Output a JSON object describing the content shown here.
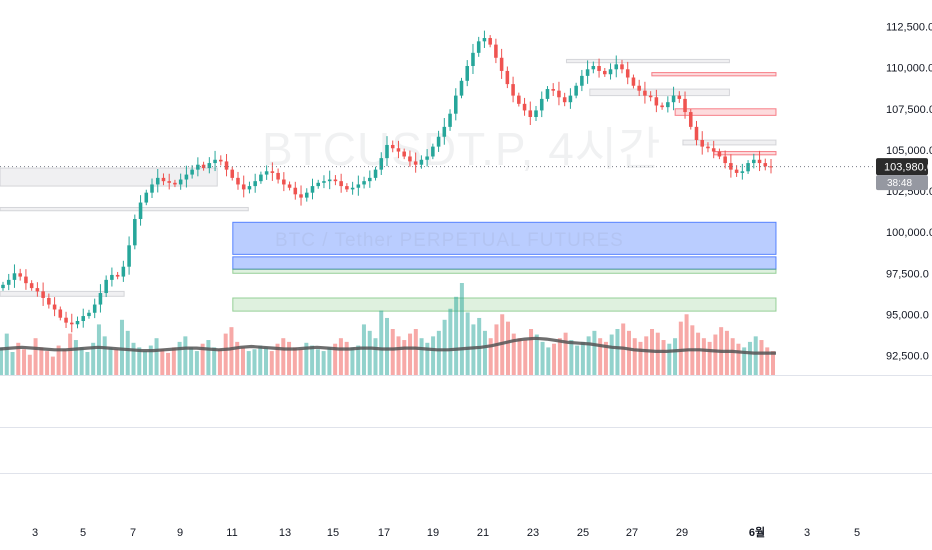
{
  "watermark": {
    "symbol": "BTCUSDT.P, 4시간",
    "description": "BTC / Tether PERPETUAL FUTURES"
  },
  "current": {
    "price": "103,980.0",
    "countdown": "38:48"
  },
  "colors": {
    "up": "#26a69a",
    "down": "#ef5350",
    "current_label": "#2b2b2b",
    "countdown_bg": "#9598a1",
    "ma_line": "#555555",
    "zone_blue": "#2962ff",
    "zone_green": "#4caf50",
    "zone_red": "#f23645",
    "zone_gray": "#9598a1"
  },
  "chart_data": {
    "type": "candlestick",
    "timeframe": "4h",
    "ylim": [
      91500,
      113200
    ],
    "y_ticks": [
      {
        "value": 112500,
        "label": "112,500.0"
      },
      {
        "value": 110000,
        "label": "110,000.0"
      },
      {
        "value": 107500,
        "label": "107,500.0"
      },
      {
        "value": 105000,
        "label": "105,000.0"
      },
      {
        "value": 102500,
        "label": "102,500.0"
      },
      {
        "value": 100000,
        "label": "100,000.0"
      },
      {
        "value": 97500,
        "label": "97,500.0"
      },
      {
        "value": 95000,
        "label": "95,000.0"
      },
      {
        "value": 92500,
        "label": "92,500.0"
      }
    ],
    "x_ticks": [
      "3",
      "5",
      "7",
      "9",
      "11",
      "13",
      "15",
      "17",
      "19",
      "21",
      "23",
      "25",
      "27",
      "29",
      "6월",
      "3",
      "5"
    ],
    "close_path": [
      96800,
      97100,
      97500,
      97300,
      96900,
      96600,
      96400,
      96000,
      95600,
      95300,
      94800,
      94500,
      94400,
      94600,
      94900,
      95100,
      95600,
      96300,
      97100,
      97400,
      97300,
      97900,
      99200,
      100800,
      101800,
      102400,
      102900,
      103300,
      103100,
      103000,
      102900,
      103200,
      103500,
      103800,
      104100,
      103900,
      104200,
      104400,
      104300,
      103800,
      103300,
      102900,
      102600,
      102800,
      103100,
      103500,
      103700,
      103600,
      103200,
      102900,
      102700,
      102300,
      102100,
      102400,
      102800,
      103000,
      103100,
      103200,
      103100,
      102800,
      102600,
      102700,
      102900,
      103100,
      103300,
      103800,
      104500,
      105300,
      105100,
      104900,
      104600,
      104300,
      104100,
      104400,
      104600,
      105200,
      105800,
      106400,
      107200,
      108300,
      109200,
      110100,
      110900,
      111600,
      111800,
      111400,
      110600,
      109800,
      109000,
      108300,
      107800,
      107400,
      107000,
      107400,
      108100,
      108700,
      108600,
      108200,
      107900,
      108300,
      108900,
      109500,
      109900,
      110100,
      109800,
      109600,
      109900,
      110200,
      109900,
      109400,
      108900,
      108600,
      108300,
      108200,
      107700,
      107600,
      107900,
      108300,
      108100,
      107300,
      106400,
      105600,
      105200,
      105100,
      104900,
      104600,
      104200,
      103800,
      103600,
      103700,
      104200,
      104400,
      104200,
      104000,
      103980
    ],
    "current_price": 103980,
    "ma_path": [
      92900,
      92950,
      93000,
      92950,
      92900,
      92850,
      92850,
      92900,
      92950,
      93000,
      92950,
      92900,
      92850,
      92800,
      92800,
      92850,
      92900,
      92950,
      92950,
      92900,
      92850,
      92900,
      93000,
      93050,
      93000,
      92950,
      92900,
      92900,
      92950,
      93000,
      92950,
      92900,
      92900,
      92950,
      92950,
      92900,
      92900,
      92950,
      92950,
      92900,
      92850,
      92850,
      92900,
      92950,
      93000,
      93100,
      93250,
      93400,
      93500,
      93550,
      93500,
      93400,
      93300,
      93250,
      93200,
      93100,
      93000,
      92950,
      92850,
      92800,
      92750,
      92750,
      92800,
      92850,
      92850,
      92800,
      92750,
      92750,
      92700,
      92650,
      92650,
      92650
    ],
    "volume_path": [
      0.3,
      0.45,
      0.25,
      0.35,
      0.28,
      0.22,
      0.4,
      0.3,
      0.26,
      0.2,
      0.32,
      0.28,
      0.45,
      0.38,
      0.3,
      0.25,
      0.35,
      0.55,
      0.42,
      0.3,
      0.28,
      0.6,
      0.48,
      0.35,
      0.3,
      0.26,
      0.32,
      0.4,
      0.28,
      0.24,
      0.3,
      0.36,
      0.42,
      0.3,
      0.26,
      0.34,
      0.38,
      0.3,
      0.28,
      0.45,
      0.52,
      0.36,
      0.3,
      0.26,
      0.28,
      0.32,
      0.3,
      0.26,
      0.34,
      0.4,
      0.36,
      0.3,
      0.28,
      0.35,
      0.32,
      0.28,
      0.26,
      0.3,
      0.34,
      0.4,
      0.36,
      0.3,
      0.32,
      0.55,
      0.48,
      0.4,
      0.7,
      0.62,
      0.5,
      0.42,
      0.38,
      0.45,
      0.5,
      0.4,
      0.35,
      0.42,
      0.48,
      0.6,
      0.72,
      0.85,
      1.0,
      0.68,
      0.55,
      0.62,
      0.48,
      0.4,
      0.55,
      0.66,
      0.58,
      0.45,
      0.4,
      0.38,
      0.5,
      0.44,
      0.36,
      0.3,
      0.34,
      0.4,
      0.46,
      0.38,
      0.32,
      0.36,
      0.42,
      0.48,
      0.4,
      0.36,
      0.44,
      0.5,
      0.56,
      0.48,
      0.4,
      0.36,
      0.42,
      0.5,
      0.46,
      0.38,
      0.34,
      0.4,
      0.58,
      0.66,
      0.54,
      0.46,
      0.4,
      0.36,
      0.44,
      0.52,
      0.48,
      0.4,
      0.34,
      0.3,
      0.36,
      0.42,
      0.38,
      0.3,
      0.26
    ],
    "zones": [
      {
        "type": "blue",
        "from_index": 0.3,
        "to_index": 1.0,
        "low": 98650,
        "high": 100600
      },
      {
        "type": "blue",
        "from_index": 0.3,
        "to_index": 1.0,
        "low": 97750,
        "high": 98500
      },
      {
        "type": "green",
        "from_index": 0.3,
        "to_index": 1.0,
        "low": 97500,
        "high": 97750
      },
      {
        "type": "green",
        "from_index": 0.3,
        "to_index": 1.0,
        "low": 95200,
        "high": 96000
      },
      {
        "type": "red",
        "from_index": 0.84,
        "to_index": 1.0,
        "low": 109500,
        "high": 109700
      },
      {
        "type": "red",
        "from_index": 0.87,
        "to_index": 1.0,
        "low": 107100,
        "high": 107500
      },
      {
        "type": "red",
        "from_index": 0.92,
        "to_index": 1.0,
        "low": 104700,
        "high": 104900
      },
      {
        "type": "gray",
        "from_index": 0.0,
        "to_index": 0.28,
        "low": 102800,
        "high": 103900
      },
      {
        "type": "gray",
        "from_index": 0.0,
        "to_index": 0.32,
        "low": 101300,
        "high": 101500
      },
      {
        "type": "gray",
        "from_index": 0.73,
        "to_index": 0.94,
        "low": 110300,
        "high": 110500
      },
      {
        "type": "gray",
        "from_index": 0.76,
        "to_index": 0.94,
        "low": 108300,
        "high": 108700
      },
      {
        "type": "gray",
        "from_index": 0.88,
        "to_index": 1.0,
        "low": 105300,
        "high": 105600
      },
      {
        "type": "gray",
        "from_index": 0.0,
        "to_index": 0.16,
        "low": 96100,
        "high": 96400
      }
    ]
  }
}
